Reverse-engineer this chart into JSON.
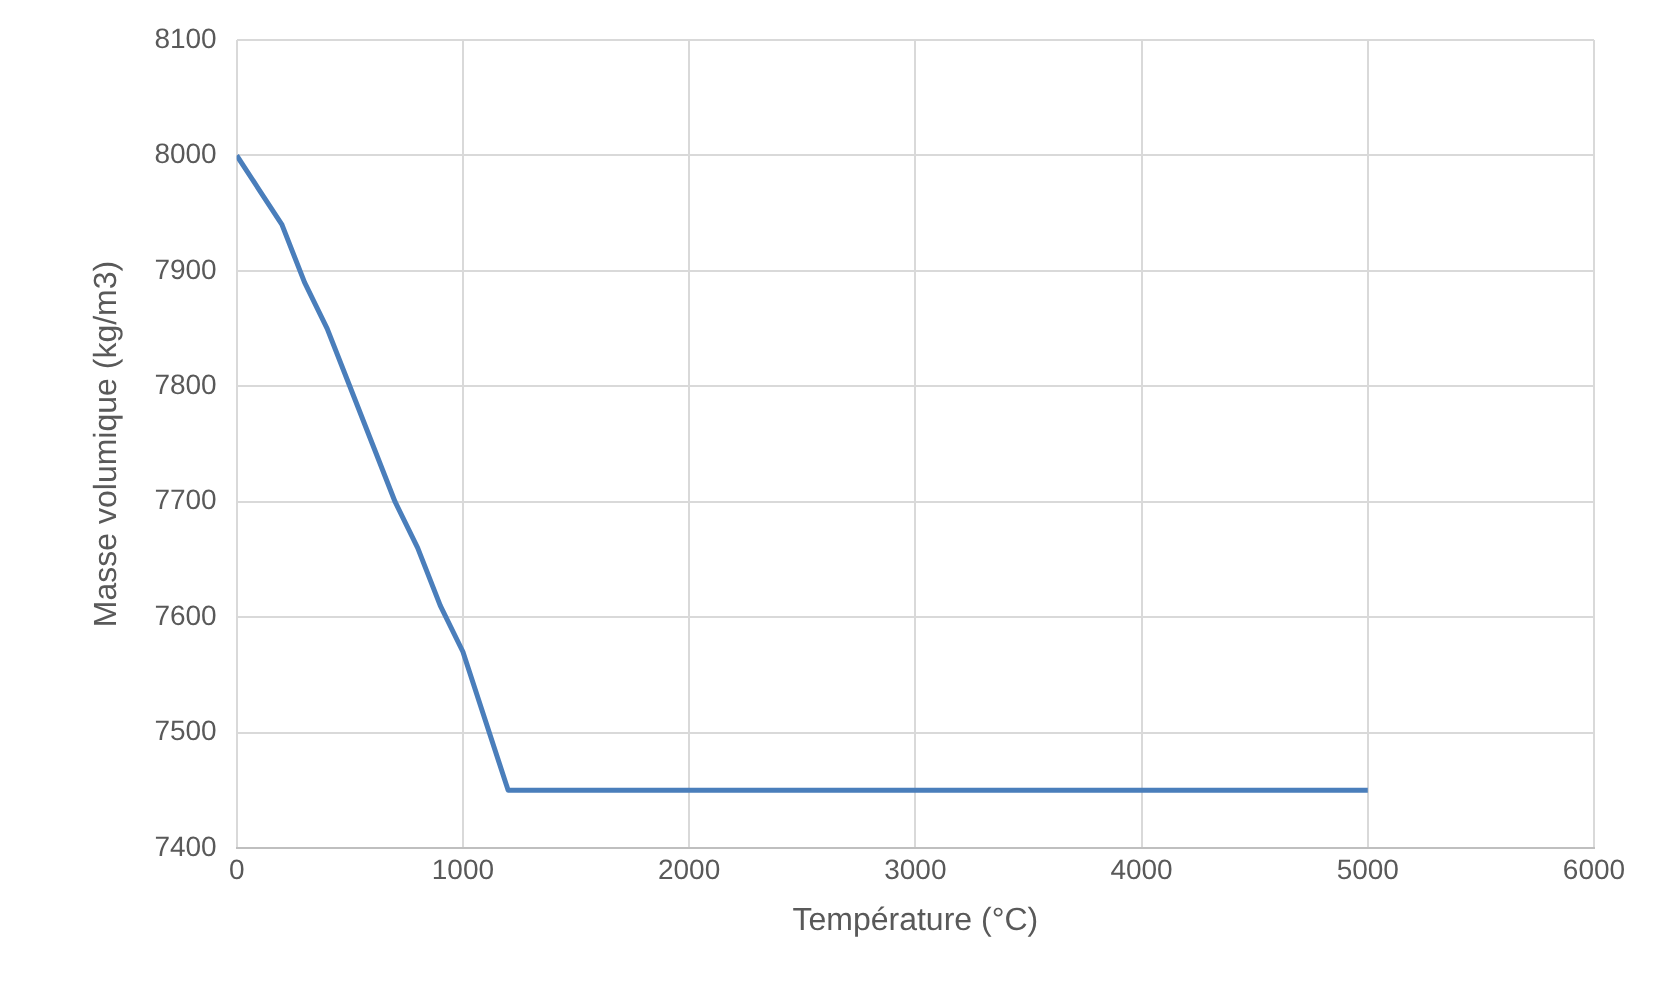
{
  "chart_data": {
    "type": "line",
    "xlabel": "Température (°C)",
    "ylabel": "Masse volumique (kg/m3)",
    "x": [
      0,
      100,
      200,
      300,
      400,
      500,
      600,
      700,
      800,
      900,
      1000,
      1200,
      5000
    ],
    "series": [
      {
        "color": "#4a7ebb",
        "values": [
          8000,
          7970,
          7940,
          7890,
          7850,
          7800,
          7750,
          7700,
          7660,
          7610,
          7570,
          7450,
          7450
        ]
      }
    ],
    "xlim": [
      0,
      6000
    ],
    "xticks": [
      0,
      1000,
      2000,
      3000,
      4000,
      5000,
      6000
    ],
    "ylim": [
      7400,
      8100
    ],
    "yticks": [
      7400,
      7500,
      7600,
      7700,
      7800,
      7900,
      8000,
      8100
    ],
    "grid": true,
    "marker": "none",
    "line_style": "solid",
    "legend": false
  }
}
